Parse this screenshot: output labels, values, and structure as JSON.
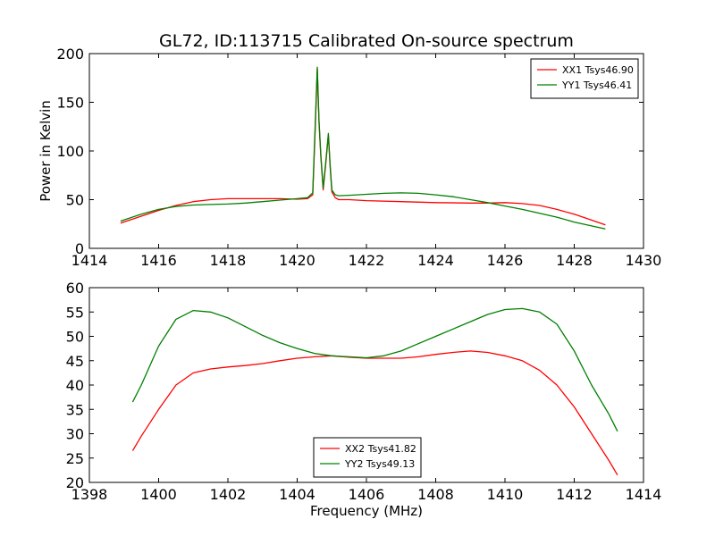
{
  "title": "GL72, ID:113715 Calibrated On-source spectrum",
  "chart_data": [
    {
      "type": "line",
      "ylabel": "Power in Kelvin",
      "xlabel": "",
      "xlim": [
        1414,
        1430
      ],
      "ylim": [
        0,
        200
      ],
      "xticks": [
        1414,
        1416,
        1418,
        1420,
        1422,
        1424,
        1426,
        1428,
        1430
      ],
      "yticks": [
        0,
        50,
        100,
        150,
        200
      ],
      "legend_position": "top-right",
      "grid": false,
      "series": [
        {
          "name": "XX1 Tsys46.90",
          "color": "#ff0000",
          "x": [
            1414.9,
            1415.5,
            1416.0,
            1416.5,
            1417.0,
            1417.5,
            1418.0,
            1418.5,
            1419.0,
            1419.5,
            1420.0,
            1420.3,
            1420.45,
            1420.52,
            1420.58,
            1420.63,
            1420.68,
            1420.75,
            1420.82,
            1420.9,
            1420.95,
            1421.0,
            1421.1,
            1421.2,
            1421.5,
            1422.0,
            1423.0,
            1424.0,
            1425.0,
            1425.5,
            1426.0,
            1426.5,
            1427.0,
            1427.5,
            1428.0,
            1428.5,
            1428.9
          ],
          "y": [
            26,
            33,
            39,
            44,
            48,
            50,
            51,
            51,
            51,
            51,
            50.5,
            51,
            55,
            120,
            184,
            130,
            95,
            60,
            85,
            116,
            85,
            58,
            52,
            50,
            50,
            49,
            48,
            47,
            46.5,
            46.5,
            47,
            46,
            44,
            40,
            35,
            29,
            24
          ]
        },
        {
          "name": "YY1 Tsys46.41",
          "color": "#008000",
          "x": [
            1414.9,
            1415.5,
            1416.0,
            1416.5,
            1417.0,
            1417.5,
            1418.0,
            1418.5,
            1419.0,
            1419.5,
            1420.0,
            1420.3,
            1420.45,
            1420.52,
            1420.58,
            1420.63,
            1420.68,
            1420.75,
            1420.82,
            1420.9,
            1420.95,
            1421.0,
            1421.1,
            1421.2,
            1421.5,
            1422.0,
            1422.5,
            1423.0,
            1423.5,
            1424.0,
            1424.5,
            1425.0,
            1425.5,
            1426.0,
            1426.5,
            1427.0,
            1427.5,
            1428.0,
            1428.5,
            1428.9
          ],
          "y": [
            28,
            35,
            40,
            43,
            44.5,
            45,
            45.5,
            46.5,
            48,
            49.5,
            51,
            52,
            57,
            125,
            186,
            132,
            97,
            62,
            87,
            118,
            87,
            60,
            55,
            54,
            54.5,
            55.5,
            56.5,
            57,
            56.5,
            55,
            53,
            50,
            47,
            43.5,
            40,
            36,
            32,
            27,
            23,
            20
          ]
        }
      ]
    },
    {
      "type": "line",
      "ylabel": "",
      "xlabel": "Frequency (MHz)",
      "xlim": [
        1398,
        1414
      ],
      "ylim": [
        20,
        60
      ],
      "xticks": [
        1398,
        1400,
        1402,
        1404,
        1406,
        1408,
        1410,
        1412,
        1414
      ],
      "yticks": [
        20,
        25,
        30,
        35,
        40,
        45,
        50,
        55,
        60
      ],
      "legend_position": "bottom-center",
      "grid": false,
      "series": [
        {
          "name": "XX2 Tsys41.82",
          "color": "#ff0000",
          "x": [
            1399.25,
            1399.5,
            1400.0,
            1400.5,
            1401.0,
            1401.5,
            1402.0,
            1402.5,
            1403.0,
            1403.5,
            1404.0,
            1404.5,
            1405.0,
            1405.5,
            1406.0,
            1406.5,
            1407.0,
            1407.5,
            1408.0,
            1408.5,
            1409.0,
            1409.5,
            1410.0,
            1410.5,
            1411.0,
            1411.5,
            1412.0,
            1412.5,
            1413.0,
            1413.25
          ],
          "y": [
            26.5,
            29.5,
            35,
            40,
            42.5,
            43.3,
            43.7,
            44.0,
            44.4,
            45.0,
            45.5,
            45.8,
            46.0,
            45.7,
            45.5,
            45.5,
            45.5,
            45.8,
            46.3,
            46.7,
            47.0,
            46.7,
            46.0,
            45.0,
            43.0,
            40.0,
            35.5,
            30.0,
            24.5,
            21.5
          ]
        },
        {
          "name": "YY2 Tsys49.13",
          "color": "#008000",
          "x": [
            1399.25,
            1399.5,
            1400.0,
            1400.5,
            1401.0,
            1401.5,
            1402.0,
            1402.5,
            1403.0,
            1403.5,
            1404.0,
            1404.5,
            1405.0,
            1405.5,
            1406.0,
            1406.5,
            1407.0,
            1407.5,
            1408.0,
            1408.5,
            1409.0,
            1409.5,
            1410.0,
            1410.5,
            1411.0,
            1411.5,
            1412.0,
            1412.5,
            1413.0,
            1413.25
          ],
          "y": [
            36.5,
            40,
            48,
            53.5,
            55.3,
            55.0,
            53.8,
            52.0,
            50.2,
            48.7,
            47.5,
            46.5,
            46.0,
            45.8,
            45.6,
            46.0,
            47.0,
            48.5,
            50.0,
            51.5,
            53.0,
            54.5,
            55.5,
            55.7,
            55.0,
            52.5,
            47.0,
            40.0,
            34.0,
            30.5
          ]
        }
      ]
    }
  ]
}
